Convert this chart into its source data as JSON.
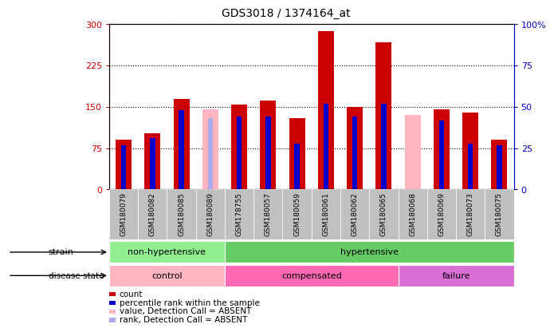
{
  "title": "GDS3018 / 1374164_at",
  "samples": [
    "GSM180079",
    "GSM180082",
    "GSM180085",
    "GSM180089",
    "GSM178755",
    "GSM180057",
    "GSM180059",
    "GSM180061",
    "GSM180062",
    "GSM180065",
    "GSM180068",
    "GSM180069",
    "GSM180073",
    "GSM180075"
  ],
  "count_values": [
    90,
    102,
    165,
    0,
    155,
    162,
    130,
    287,
    150,
    267,
    0,
    145,
    140,
    90
  ],
  "rank_values": [
    27,
    31,
    48,
    0,
    44,
    44,
    28,
    52,
    44,
    52,
    0,
    42,
    28,
    27
  ],
  "absent_count": [
    0,
    0,
    0,
    145,
    0,
    0,
    0,
    0,
    0,
    0,
    135,
    0,
    0,
    0
  ],
  "absent_rank": [
    0,
    0,
    0,
    43,
    0,
    0,
    0,
    0,
    0,
    0,
    0,
    0,
    0,
    0
  ],
  "ylim_left": [
    0,
    300
  ],
  "ylim_right": [
    0,
    100
  ],
  "yticks_left": [
    0,
    75,
    150,
    225,
    300
  ],
  "yticks_right": [
    0,
    25,
    50,
    75,
    100
  ],
  "strain_groups": [
    {
      "label": "non-hypertensive",
      "start": 0,
      "end": 4,
      "color": "#90EE90"
    },
    {
      "label": "hypertensive",
      "start": 4,
      "end": 14,
      "color": "#66CC66"
    }
  ],
  "disease_groups": [
    {
      "label": "control",
      "start": 0,
      "end": 4,
      "color": "#FFB6C1"
    },
    {
      "label": "compensated",
      "start": 4,
      "end": 10,
      "color": "#FF69B4"
    },
    {
      "label": "failure",
      "start": 10,
      "end": 14,
      "color": "#DA70D6"
    }
  ],
  "bar_color_red": "#CC0000",
  "bar_color_blue": "#0000CC",
  "bar_color_pink": "#FFB6C1",
  "bar_color_lightblue": "#AAAAEE",
  "left_axis_color": "#CC0000",
  "right_axis_color": "#0000CC",
  "tick_label_bg": "#C0C0C0",
  "plot_bg": "#FFFFFF"
}
